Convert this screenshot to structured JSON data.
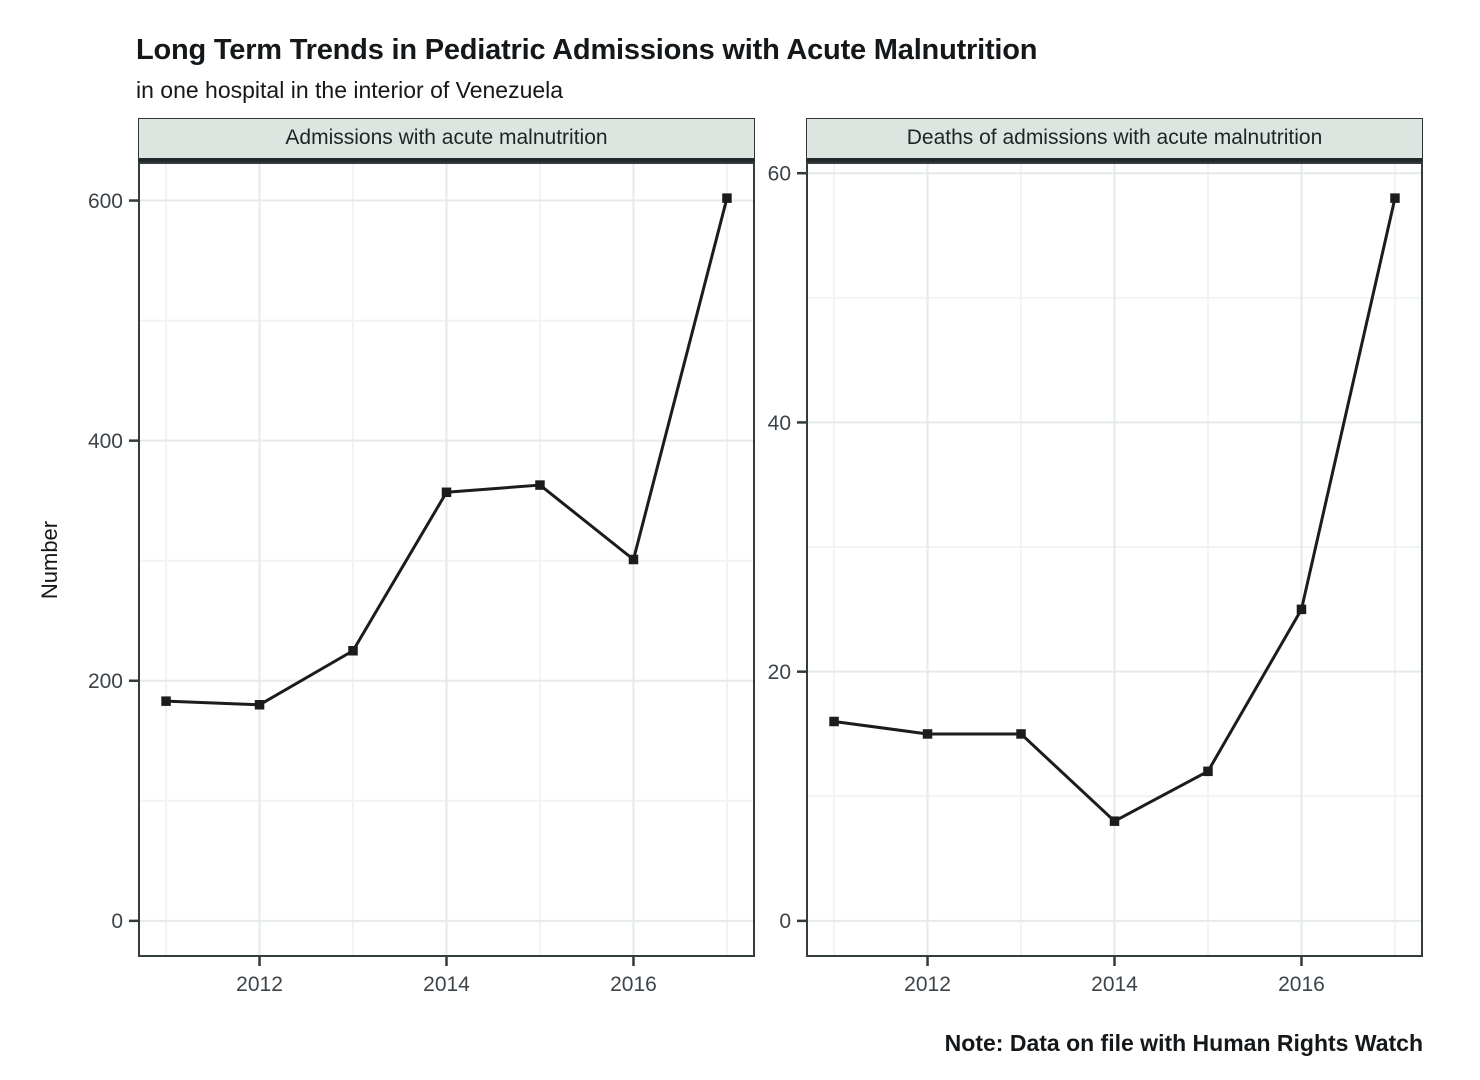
{
  "chart_data": {
    "type": "line",
    "title": "Long Term Trends in Pediatric Admissions with Acute Malnutrition",
    "subtitle": "in one hospital in the interior of Venezuela",
    "note": "Note: Data on file with Human Rights Watch",
    "ylabel": "Number",
    "xlabel": "",
    "legend": "none",
    "grid": true,
    "x": [
      2011,
      2012,
      2013,
      2014,
      2015,
      2016,
      2017
    ],
    "x_ticks": [
      2012,
      2014,
      2016
    ],
    "x_minor": [
      2011,
      2013,
      2015,
      2017
    ],
    "xlim": [
      2010.7,
      2017.3
    ],
    "facets": [
      {
        "label": "Admissions with acute malnutrition",
        "values": [
          183,
          180,
          225,
          357,
          363,
          301,
          602
        ],
        "y_ticks": [
          0,
          200,
          400,
          600
        ],
        "y_minor": [
          100,
          300,
          500
        ],
        "ylim": [
          -30.1,
          632.1
        ]
      },
      {
        "label": "Deaths of admissions with acute malnutrition",
        "values": [
          16,
          15,
          15,
          8,
          12,
          25,
          58
        ],
        "y_ticks": [
          0,
          20,
          40,
          60
        ],
        "y_minor": [
          10,
          30,
          50
        ],
        "ylim": [
          -2.9,
          60.9
        ]
      }
    ],
    "colors": {
      "line": "#1c1c1c",
      "marker": "#1c1c1c",
      "panel_border": "#343c3d",
      "grid_major": "#e5eaea",
      "grid_minor": "#f1f4f4",
      "tick_mark": "#333a3b",
      "tick_label": "#3d4449",
      "strip_fill": "#dee4df",
      "text": "#15181a"
    },
    "marker": "square"
  }
}
